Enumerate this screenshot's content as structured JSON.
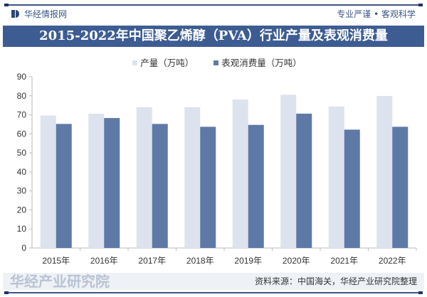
{
  "header": {
    "brand": "华经情报网",
    "slogan": "专业严谨 • 客观科学",
    "title": "2015-2022年中国聚乙烯醇（PVA）行业产量及表观消费量"
  },
  "footer": {
    "source": "资料来源：中国海关，华经产业研究院整理",
    "watermark": "华经产业研究院"
  },
  "colors": {
    "production": "#dde3ee",
    "consumption": "#5f79a6",
    "banner": "#3d5c92"
  },
  "chart_data": {
    "type": "bar",
    "categories": [
      "2015年",
      "2016年",
      "2017年",
      "2018年",
      "2019年",
      "2020年",
      "2021年",
      "2022年"
    ],
    "series": [
      {
        "name": "产量（万吨）",
        "values": [
          69.6,
          70.6,
          74.0,
          74.0,
          78.0,
          80.5,
          74.4,
          79.9
        ]
      },
      {
        "name": "表观消费量（万吨）",
        "values": [
          65.2,
          68.3,
          65.2,
          63.7,
          64.7,
          70.6,
          62.2,
          63.7
        ]
      }
    ],
    "ylim": [
      0,
      90
    ],
    "yticks": [
      0,
      10,
      20,
      30,
      40,
      50,
      60,
      70,
      80,
      90
    ],
    "grid": false,
    "legend": "top"
  }
}
